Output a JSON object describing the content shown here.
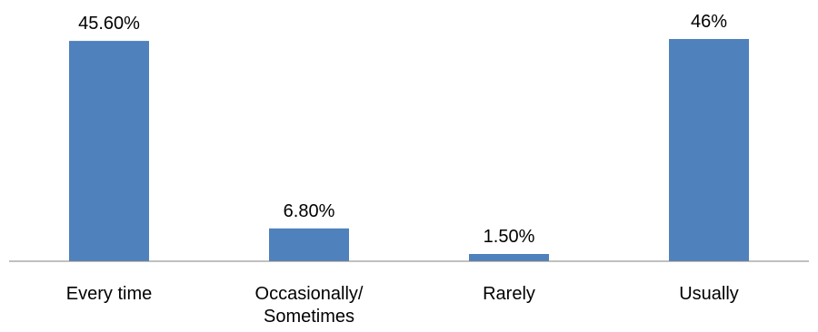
{
  "chart_data": {
    "type": "bar",
    "categories": [
      [
        "Every time"
      ],
      [
        "Occasionally/",
        "Sometimes"
      ],
      [
        "Rarely"
      ],
      [
        "Usually"
      ]
    ],
    "values": [
      45.6,
      6.8,
      1.5,
      46
    ],
    "data_labels": [
      "45.60%",
      "6.80%",
      "1.50%",
      "46%"
    ],
    "title": "",
    "xlabel": "",
    "ylabel": "",
    "ylim": [
      0,
      46
    ],
    "grid": false,
    "legend": "none",
    "colors": {
      "bar": "#4F81BD",
      "axis": "#808080",
      "text": "#000000"
    }
  }
}
